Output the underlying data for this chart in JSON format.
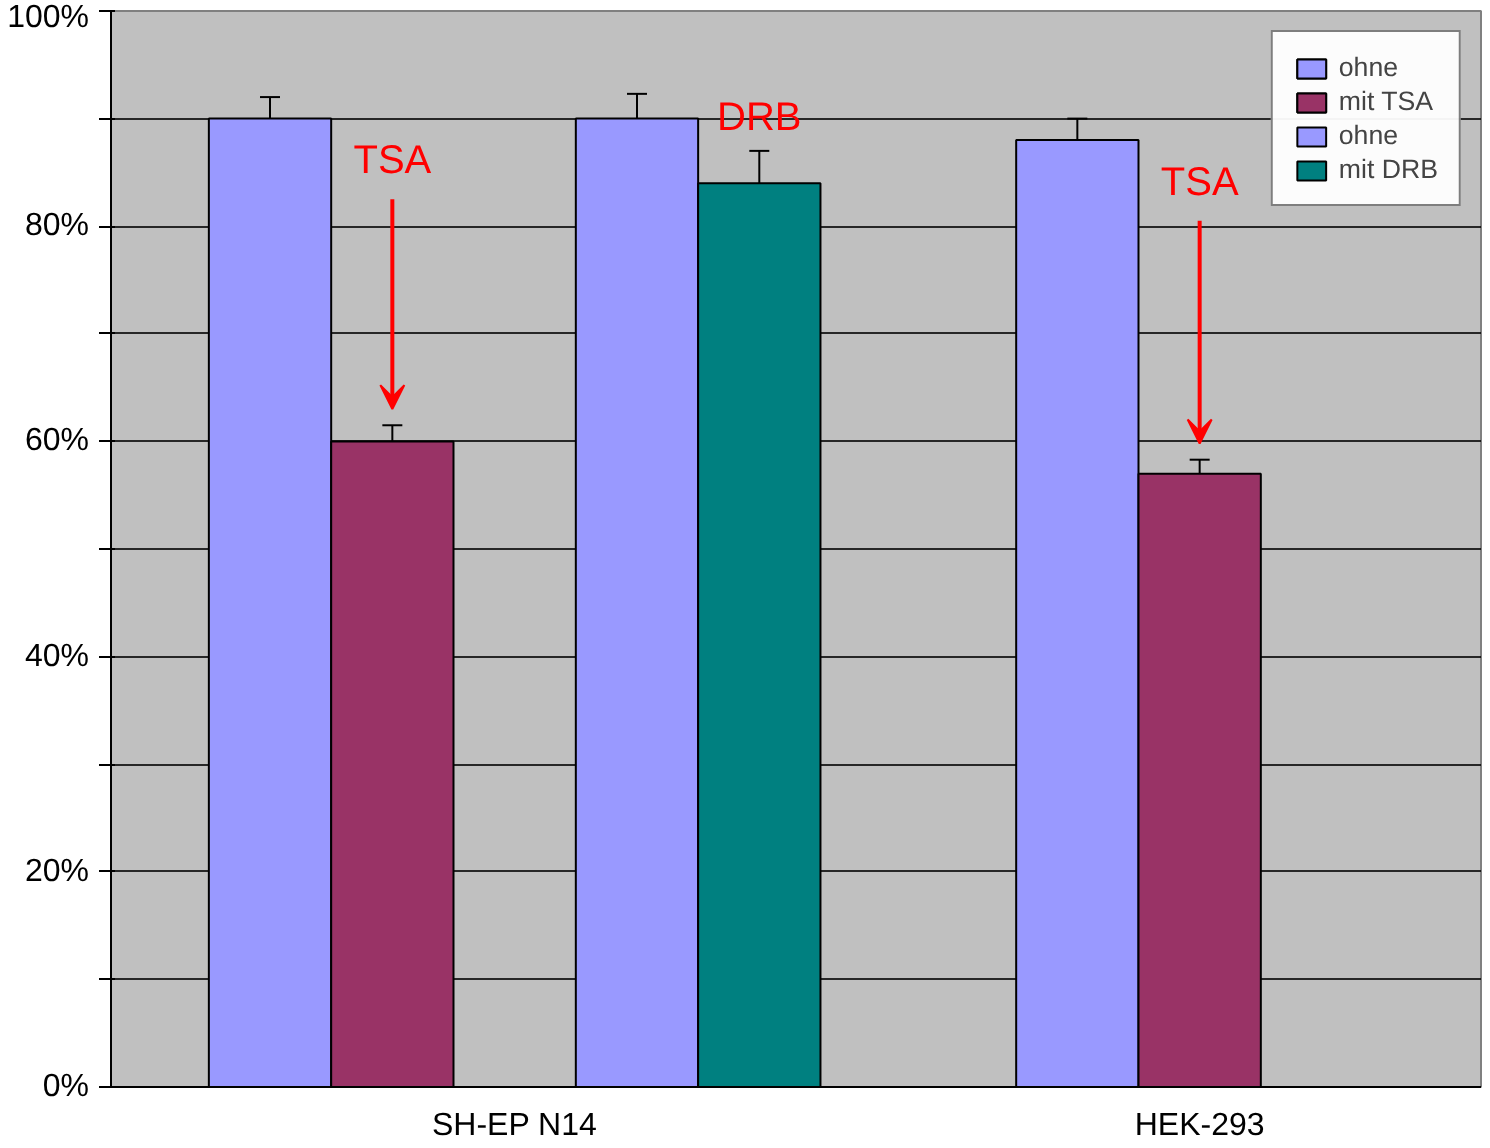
{
  "chart_data": {
    "type": "bar",
    "categories": [
      "SH-EP N14",
      "HEK-293"
    ],
    "series": [
      {
        "name": "ohne",
        "color": "#9999ff",
        "values": [
          90,
          88
        ],
        "errors": [
          2,
          2
        ]
      },
      {
        "name": "mit TSA",
        "color": "#993366",
        "values": [
          60,
          57
        ],
        "errors": [
          1.5,
          1.3
        ]
      },
      {
        "name": "ohne",
        "color": "#9999ff",
        "values": [
          90,
          null
        ],
        "errors": [
          2.3,
          null
        ]
      },
      {
        "name": "mit DRB",
        "color": "#008080",
        "values": [
          84,
          null
        ],
        "errors": [
          3,
          null
        ]
      }
    ],
    "ylim": [
      0,
      100
    ],
    "yticks": [
      {
        "value": 0,
        "label": "0%"
      },
      {
        "value": 10,
        "label": null
      },
      {
        "value": 20,
        "label": "20%"
      },
      {
        "value": 30,
        "label": null
      },
      {
        "value": 40,
        "label": "40%"
      },
      {
        "value": 50,
        "label": null
      },
      {
        "value": 60,
        "label": "60%"
      },
      {
        "value": 70,
        "label": null
      },
      {
        "value": 80,
        "label": "80%"
      },
      {
        "value": 90,
        "label": null
      },
      {
        "value": 100,
        "label": "100%"
      }
    ],
    "grid": "y",
    "legend": "top right",
    "annotations": [
      "TSA",
      "DRB",
      "TSA"
    ]
  }
}
